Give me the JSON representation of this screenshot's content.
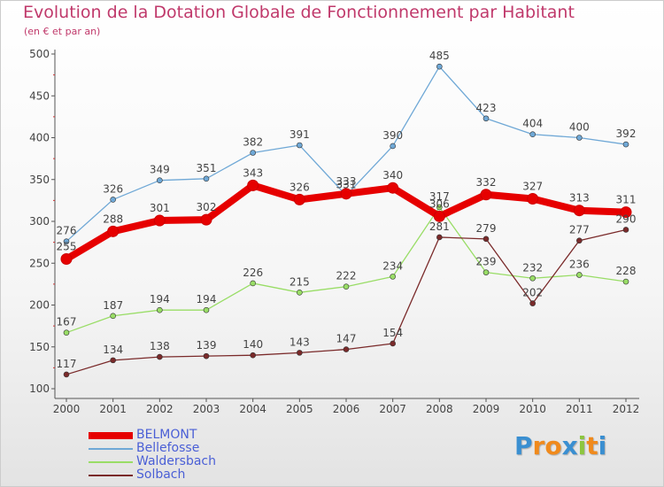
{
  "header": {
    "title": "Evolution de la Dotation Globale de Fonctionnement par Habitant",
    "subtitle": "(en € et par an)"
  },
  "brand": {
    "letters": [
      "P",
      "r",
      "o",
      "x",
      "i",
      "t",
      "i"
    ],
    "colors": [
      "#3a8fd1",
      "#f08a1c",
      "#f08a1c",
      "#3a8fd1",
      "#8dc63f",
      "#f08a1c",
      "#3a8fd1"
    ]
  },
  "chart_data": {
    "type": "line",
    "title": "Evolution de la Dotation Globale de Fonctionnement par Habitant",
    "subtitle": "(en € et par an)",
    "x": [
      "2000",
      "2001",
      "2002",
      "2003",
      "2004",
      "2005",
      "2006",
      "2007",
      "2008",
      "2009",
      "2010",
      "2011",
      "2012"
    ],
    "y_ticks": [
      "100",
      "150",
      "200",
      "250",
      "300",
      "350",
      "400",
      "450",
      "500"
    ],
    "ylim": [
      100,
      500
    ],
    "grid": false,
    "legend_position": "bottom-left",
    "series": [
      {
        "name": "BELMONT",
        "color": "#e60000",
        "values": [
          255,
          288,
          301,
          302,
          343,
          326,
          333,
          340,
          306,
          332,
          327,
          313,
          311
        ],
        "labels": [
          "255",
          "288",
          "301",
          "302",
          "343",
          "326",
          "333",
          "340",
          "306",
          "332",
          "327",
          "313",
          "311"
        ]
      },
      {
        "name": "Bellefosse",
        "color": "#6fa8d6",
        "values": [
          276,
          326,
          349,
          351,
          382,
          391,
          331,
          390,
          485,
          423,
          404,
          400,
          392
        ],
        "labels": [
          "276",
          "326",
          "349",
          "351",
          "382",
          "391",
          "331",
          "390",
          "485",
          "423",
          "404",
          "400",
          "392"
        ]
      },
      {
        "name": "Waldersbach",
        "color": "#99dd66",
        "values": [
          167,
          187,
          194,
          194,
          226,
          215,
          222,
          234,
          317,
          239,
          232,
          236,
          228
        ],
        "labels": [
          "167",
          "187",
          "194",
          "194",
          "226",
          "215",
          "222",
          "234",
          "317",
          "239",
          "232",
          "236",
          "228"
        ]
      },
      {
        "name": "Solbach",
        "color": "#7a2a2a",
        "values": [
          117,
          134,
          138,
          139,
          140,
          143,
          147,
          154,
          281,
          279,
          202,
          277,
          290
        ],
        "labels": [
          "117",
          "134",
          "138",
          "139",
          "140",
          "143",
          "147",
          "154",
          "281",
          "279",
          "202",
          "277",
          "290"
        ]
      }
    ]
  }
}
